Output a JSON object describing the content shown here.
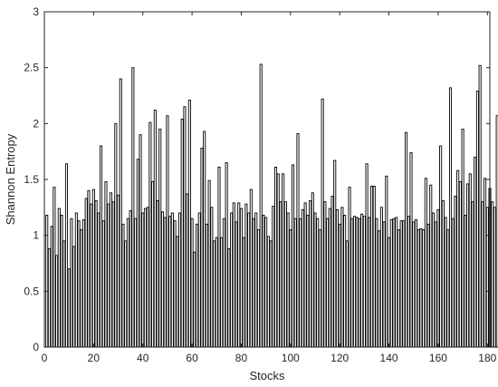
{
  "chart_data": {
    "type": "bar",
    "xlabel": "Stocks",
    "ylabel": "Shannon Entropy",
    "xlim": [
      0,
      181
    ],
    "ylim": [
      0,
      3
    ],
    "xticks": [
      0,
      20,
      40,
      60,
      80,
      100,
      120,
      140,
      160,
      180
    ],
    "yticks": [
      0,
      0.5,
      1,
      1.5,
      2,
      2.5,
      3
    ],
    "xtick_labels": [
      "0",
      "20",
      "40",
      "60",
      "80",
      "100",
      "120",
      "140",
      "160",
      "180"
    ],
    "ytick_labels": [
      "0",
      "0.5",
      "1",
      "1.5",
      "2",
      "2.5",
      "3"
    ],
    "grid": false,
    "bar_fill": "#ffffff",
    "bar_edge": "#000000",
    "values": [
      1.18,
      0.88,
      1.08,
      1.43,
      0.82,
      1.24,
      1.18,
      0.95,
      1.64,
      0.7,
      1.15,
      0.9,
      1.2,
      1.13,
      1.05,
      1.14,
      1.33,
      1.4,
      1.28,
      1.41,
      1.31,
      1.2,
      1.8,
      1.13,
      1.48,
      1.28,
      1.38,
      1.3,
      2.0,
      1.36,
      2.4,
      1.1,
      0.95,
      1.15,
      1.22,
      2.5,
      1.15,
      1.68,
      1.9,
      1.2,
      1.24,
      1.25,
      2.01,
      1.48,
      2.12,
      1.31,
      1.95,
      1.21,
      1.16,
      2.07,
      1.17,
      1.2,
      1.13,
      0.99,
      1.2,
      2.04,
      2.15,
      1.37,
      2.21,
      1.15,
      0.85,
      1.1,
      1.2,
      1.78,
      1.93,
      1.1,
      1.49,
      1.25,
      0.95,
      0.98,
      1.61,
      0.98,
      1.15,
      1.65,
      0.88,
      1.2,
      1.29,
      1.12,
      1.29,
      1.24,
      0.98,
      1.28,
      1.2,
      1.41,
      1.15,
      1.2,
      1.05,
      2.53,
      1.18,
      1.16,
      0.99,
      0.95,
      1.26,
      1.61,
      1.55,
      1.3,
      1.55,
      1.3,
      1.2,
      1.05,
      1.63,
      1.15,
      1.91,
      1.15,
      1.23,
      1.29,
      1.18,
      1.31,
      1.38,
      1.2,
      1.15,
      1.05,
      2.22,
      1.3,
      1.15,
      1.24,
      1.35,
      1.67,
      1.23,
      1.1,
      1.25,
      1.18,
      0.95,
      1.43,
      1.15,
      1.17,
      1.16,
      1.15,
      1.19,
      1.17,
      1.64,
      1.16,
      1.44,
      1.44,
      1.15,
      1.04,
      1.25,
      1.12,
      1.53,
      0.98,
      1.14,
      1.15,
      1.16,
      1.05,
      1.13,
      1.13,
      1.92,
      1.17,
      1.74,
      1.12,
      1.14,
      1.05,
      1.06,
      1.05,
      1.51,
      1.1,
      1.45,
      1.2,
      1.12,
      1.23,
      1.8,
      1.31,
      1.16,
      1.05,
      2.32,
      1.15,
      1.35,
      1.58,
      1.48,
      1.95,
      1.18,
      1.46,
      1.55,
      1.3,
      1.7,
      2.29,
      2.52,
      1.3,
      1.51,
      1.25,
      1.42,
      1.3,
      1.25,
      2.07
    ]
  }
}
